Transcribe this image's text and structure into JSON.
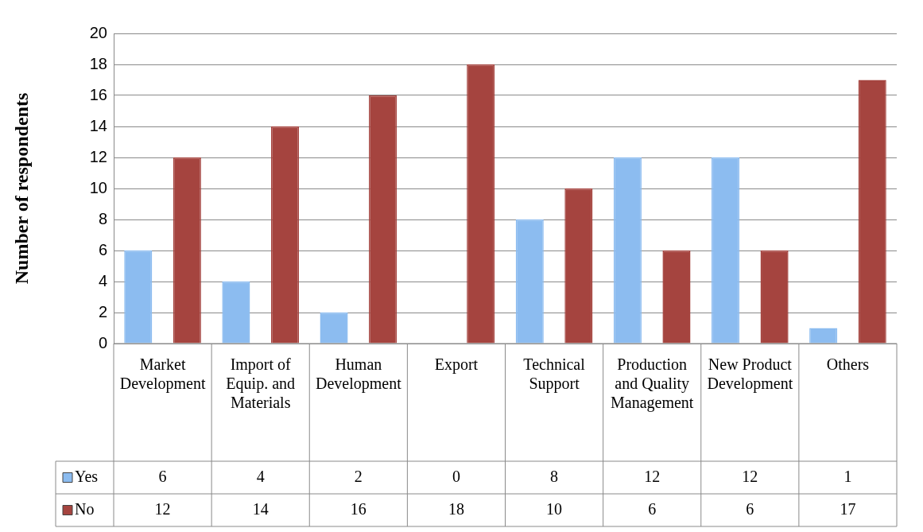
{
  "chart_data": {
    "type": "bar",
    "ylabel": "Number of respondents",
    "categories": [
      "Market Development",
      "Import of Equip. and Materials",
      "Human Development",
      "Export",
      "Technical Support",
      "Production and Quality Management",
      "New Product Development",
      "Others"
    ],
    "series": [
      {
        "name": "Yes",
        "color": "#8cbcf0",
        "values": [
          6,
          4,
          2,
          0,
          8,
          12,
          12,
          1
        ]
      },
      {
        "name": "No",
        "color": "#a5443f",
        "values": [
          12,
          14,
          16,
          18,
          10,
          6,
          6,
          17
        ]
      }
    ],
    "ylim": [
      0,
      20
    ],
    "yticks": [
      0,
      2,
      4,
      6,
      8,
      10,
      12,
      14,
      16,
      18,
      20
    ],
    "grid": "y",
    "legend": "bottom",
    "data_labels": true
  }
}
